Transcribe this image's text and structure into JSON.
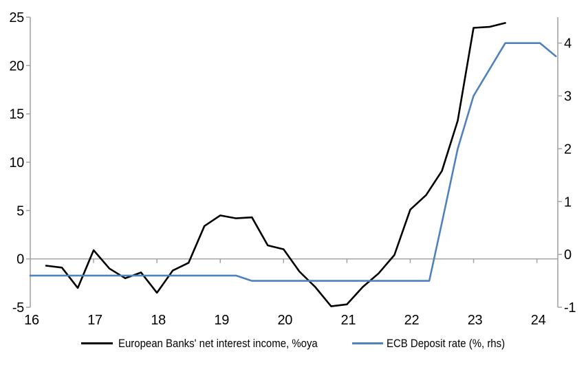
{
  "page": {
    "background": "#ffffff",
    "axis_color": "#a3a3a3",
    "text_color": "#000000"
  },
  "chart_data": {
    "type": "line",
    "title": "",
    "x_axis": {
      "domain": [
        16,
        24.33
      ],
      "ticks": [
        16,
        17,
        18,
        19,
        20,
        21,
        22,
        23,
        24
      ],
      "tick_labels": [
        "16",
        "17",
        "18",
        "19",
        "20",
        "21",
        "22",
        "23",
        "24"
      ]
    },
    "left_axis": {
      "domain": [
        -5,
        25
      ],
      "ticks": [
        -5,
        0,
        5,
        10,
        15,
        20,
        25
      ],
      "tick_labels": [
        "-5",
        "0",
        "5",
        "10",
        "15",
        "20",
        "25"
      ]
    },
    "right_axis": {
      "domain": [
        -1,
        4.49
      ],
      "ticks": [
        -1,
        0,
        1,
        2,
        3,
        4
      ],
      "tick_labels": [
        "-1",
        "0",
        "1",
        "2",
        "3",
        "4"
      ]
    },
    "grid": "zero-line-only",
    "legend_position": "bottom-center",
    "series": [
      {
        "name": "European Banks' net interest income, %oya",
        "axis": "left",
        "color": "#000000",
        "x": [
          16.25,
          16.5,
          16.75,
          17.0,
          17.25,
          17.5,
          17.75,
          18.0,
          18.25,
          18.5,
          18.75,
          19.0,
          19.25,
          19.5,
          19.75,
          20.0,
          20.25,
          20.5,
          20.75,
          21.0,
          21.25,
          21.5,
          21.75,
          22.0,
          22.25,
          22.5,
          22.75,
          23.0,
          23.25,
          23.5
        ],
        "y": [
          -0.7,
          -0.9,
          -3.0,
          0.9,
          -1.0,
          -2.0,
          -1.4,
          -3.5,
          -1.2,
          -0.4,
          3.4,
          4.5,
          4.2,
          4.3,
          1.4,
          1.0,
          -1.3,
          -2.9,
          -4.9,
          -4.7,
          -2.9,
          -1.5,
          0.4,
          5.1,
          6.6,
          9.1,
          14.3,
          23.9,
          24.0,
          24.4
        ]
      },
      {
        "name": "ECB Deposit rate (%, rhs)",
        "axis": "right",
        "color": "#4f81bd",
        "x": [
          16.0,
          19.25,
          19.5,
          22.3,
          22.5,
          22.75,
          23.0,
          23.5,
          24.05,
          24.3
        ],
        "y": [
          -0.4,
          -0.4,
          -0.5,
          -0.5,
          0.6,
          2.0,
          3.0,
          4.0,
          4.0,
          3.75
        ]
      }
    ]
  }
}
